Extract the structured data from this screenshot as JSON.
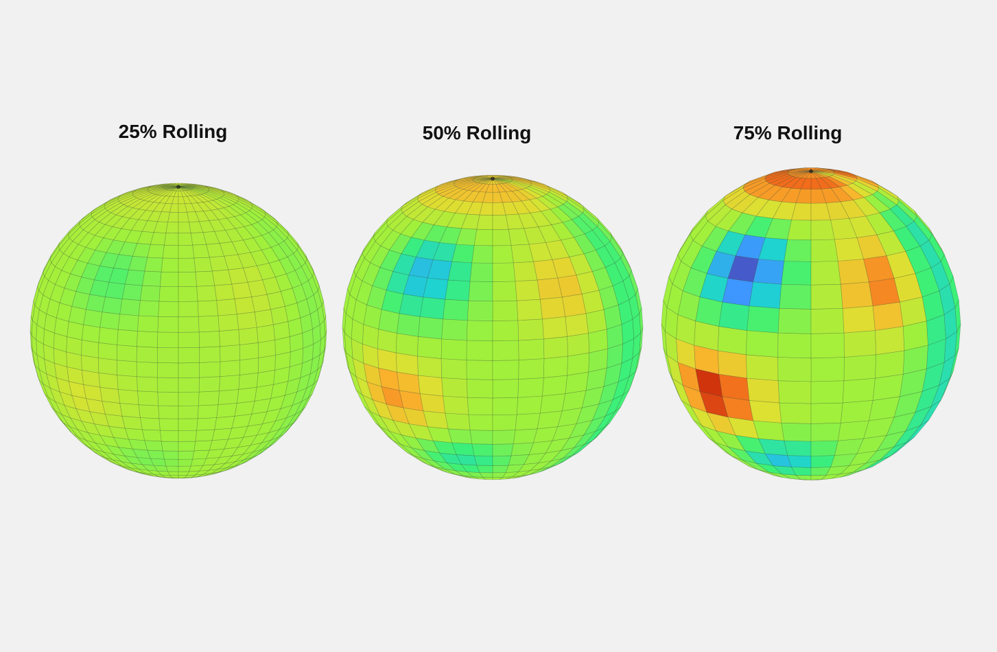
{
  "background": "#f1f1f1",
  "title_color": "#111111",
  "colormap": "turbo",
  "panels": [
    {
      "title": "25% Rolling",
      "rolling_percent": 25
    },
    {
      "title": "50% Rolling",
      "rolling_percent": 50
    },
    {
      "title": "75% Rolling",
      "rolling_percent": 75
    }
  ]
}
